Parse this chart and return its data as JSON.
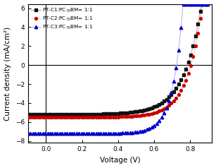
{
  "title": "",
  "xlabel": "Voltage (V)",
  "ylabel": "Current density (mA/cm²)",
  "xlim": [
    -0.1,
    0.92
  ],
  "ylim": [
    -8.2,
    6.4
  ],
  "xticks": [
    0.0,
    0.2,
    0.4,
    0.6,
    0.8
  ],
  "yticks": [
    -8,
    -6,
    -4,
    -2,
    0,
    2,
    4,
    6
  ],
  "curves": [
    {
      "label": "PT-C1:PC$_{70}$BM= 1:1",
      "dark_color": "#111111",
      "light_color": "#aaaaaa",
      "marker": "s",
      "markersize": 2.8,
      "Jsc": -5.2,
      "Voc": 0.785,
      "n": 3.8,
      "Rs": 4.0
    },
    {
      "label": "PT-C2:PC$_{70}$BM= 1:1",
      "dark_color": "#cc0000",
      "light_color": "#ffbbbb",
      "marker": "o",
      "markersize": 2.8,
      "Jsc": -5.5,
      "Voc": 0.805,
      "n": 3.2,
      "Rs": 3.5
    },
    {
      "label": "PT-C3:PC$_{70}$BM= 1:1",
      "dark_color": "#0000cc",
      "light_color": "#aaaaff",
      "marker": "^",
      "markersize": 3.2,
      "Jsc": -7.2,
      "Voc": 0.725,
      "n": 2.2,
      "Rs": 1.5
    }
  ],
  "legend_loc": "upper left",
  "legend_fontsize": 5.2,
  "tick_fontsize": 6.5,
  "label_fontsize": 7.5,
  "figsize": [
    3.07,
    2.38
  ],
  "dpi": 100,
  "marker_step": 8,
  "linewidth": 0.7
}
